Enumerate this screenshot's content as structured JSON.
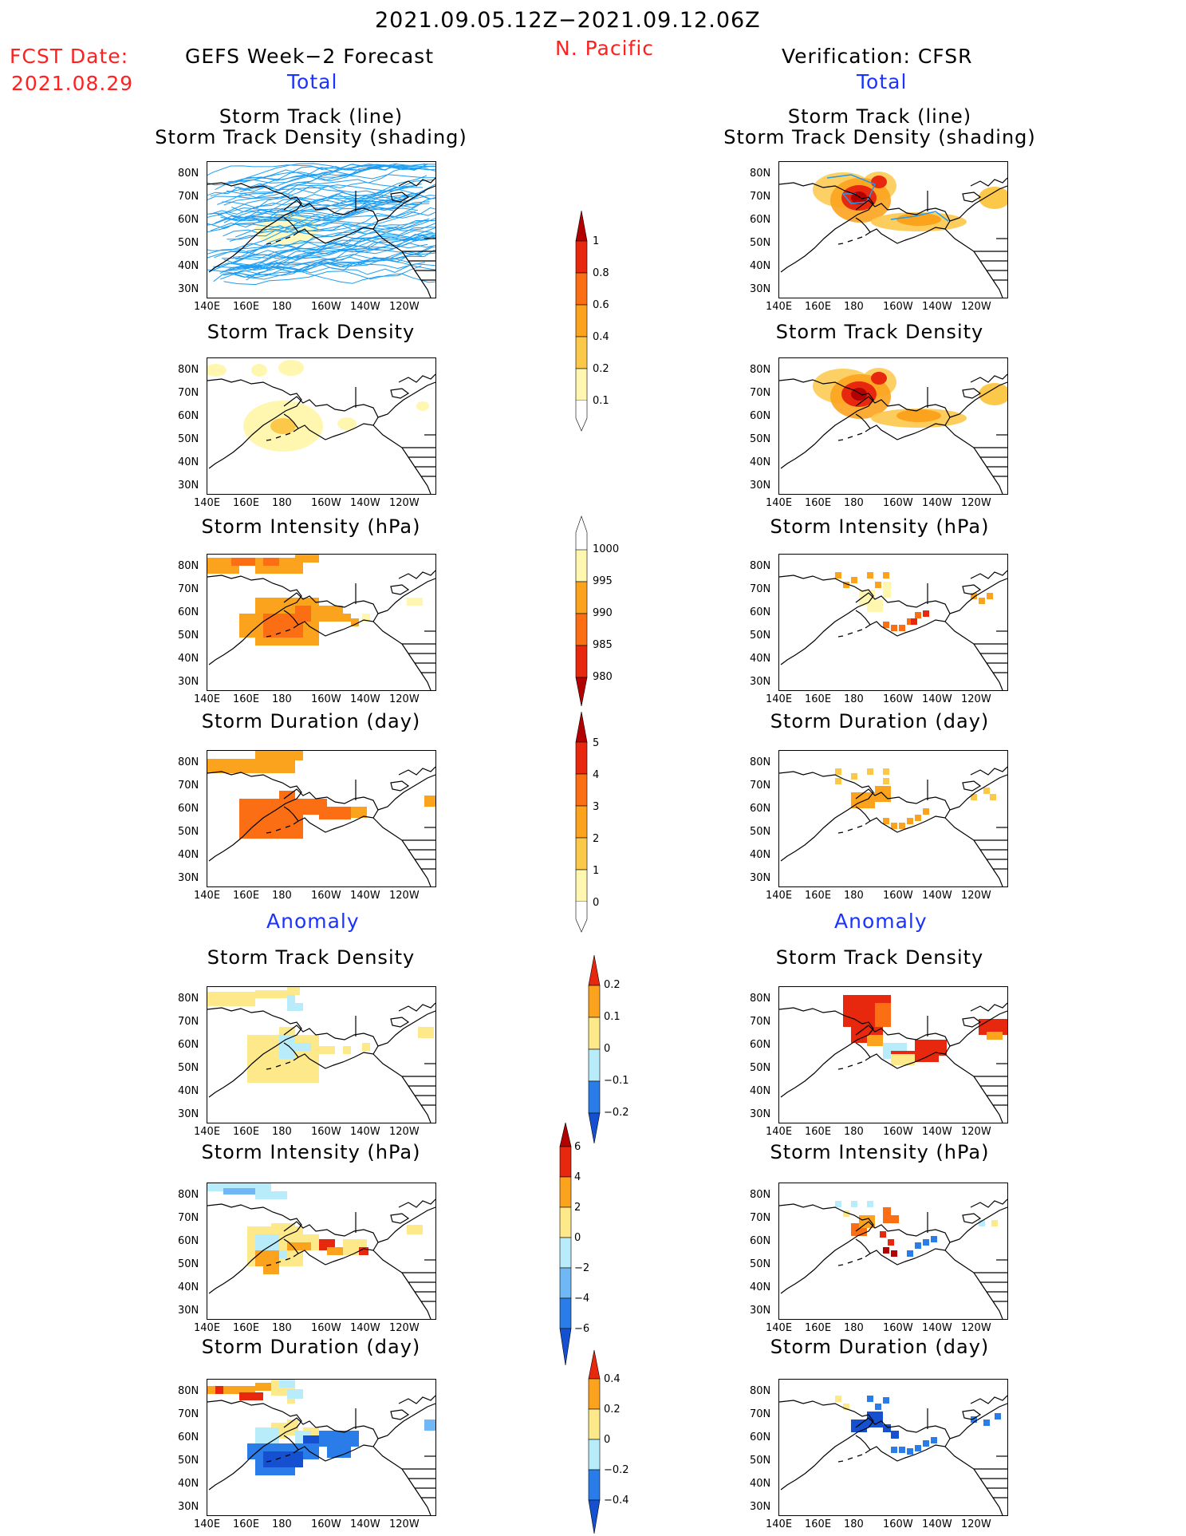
{
  "header": {
    "date_range": "2021.09.05.12Z−2021.09.12.06Z",
    "region": "N. Pacific",
    "fcst_date_label": "FCST Date:",
    "fcst_date_value": "2021.08.29",
    "left_title": "GEFS Week−2 Forecast",
    "right_title": "Verification: CFSR",
    "total_label": "Total",
    "anomaly_label": "Anomaly"
  },
  "panel_titles": {
    "track_line": "Storm Track (line)",
    "track_density_shading": "Storm Track Density (shading)",
    "track_density": "Storm Track Density",
    "intensity": "Storm Intensity (hPa)",
    "duration": "Storm Duration (day)"
  },
  "axes": {
    "lat_labels": [
      "80N",
      "70N",
      "60N",
      "50N",
      "40N",
      "30N"
    ],
    "lon_labels": [
      "140E",
      "160E",
      "180",
      "160W",
      "140W",
      "120W"
    ]
  },
  "colorbars": {
    "density": {
      "labels": [
        "1",
        "0.8",
        "0.6",
        "0.4",
        "0.2",
        "0.1"
      ]
    },
    "intensity": {
      "labels": [
        "1000",
        "995",
        "990",
        "985",
        "980"
      ]
    },
    "duration": {
      "labels": [
        "5",
        "4",
        "3",
        "2",
        "1",
        "0"
      ]
    },
    "density_anom": {
      "labels": [
        "0.2",
        "0.1",
        "0",
        "−0.1",
        "−0.2"
      ]
    },
    "intensity_anom": {
      "labels": [
        "6",
        "4",
        "2",
        "0",
        "−2",
        "−4",
        "−6"
      ]
    },
    "duration_anom": {
      "labels": [
        "0.4",
        "0.2",
        "0",
        "−0.2",
        "−0.4"
      ]
    }
  },
  "colors": {
    "pale_yellow": "#fff7b0",
    "light_yellow": "#fde88a",
    "yellow_orange": "#fcc84a",
    "orange": "#fca31e",
    "dark_orange": "#fc6e14",
    "red": "#e8280e",
    "dark_red": "#b30000",
    "light_blue": "#b8ecfa",
    "mid_blue": "#6fb8f5",
    "blue": "#2a7de8",
    "dark_blue": "#1450d0",
    "track_line": "#1d9cf0"
  }
}
